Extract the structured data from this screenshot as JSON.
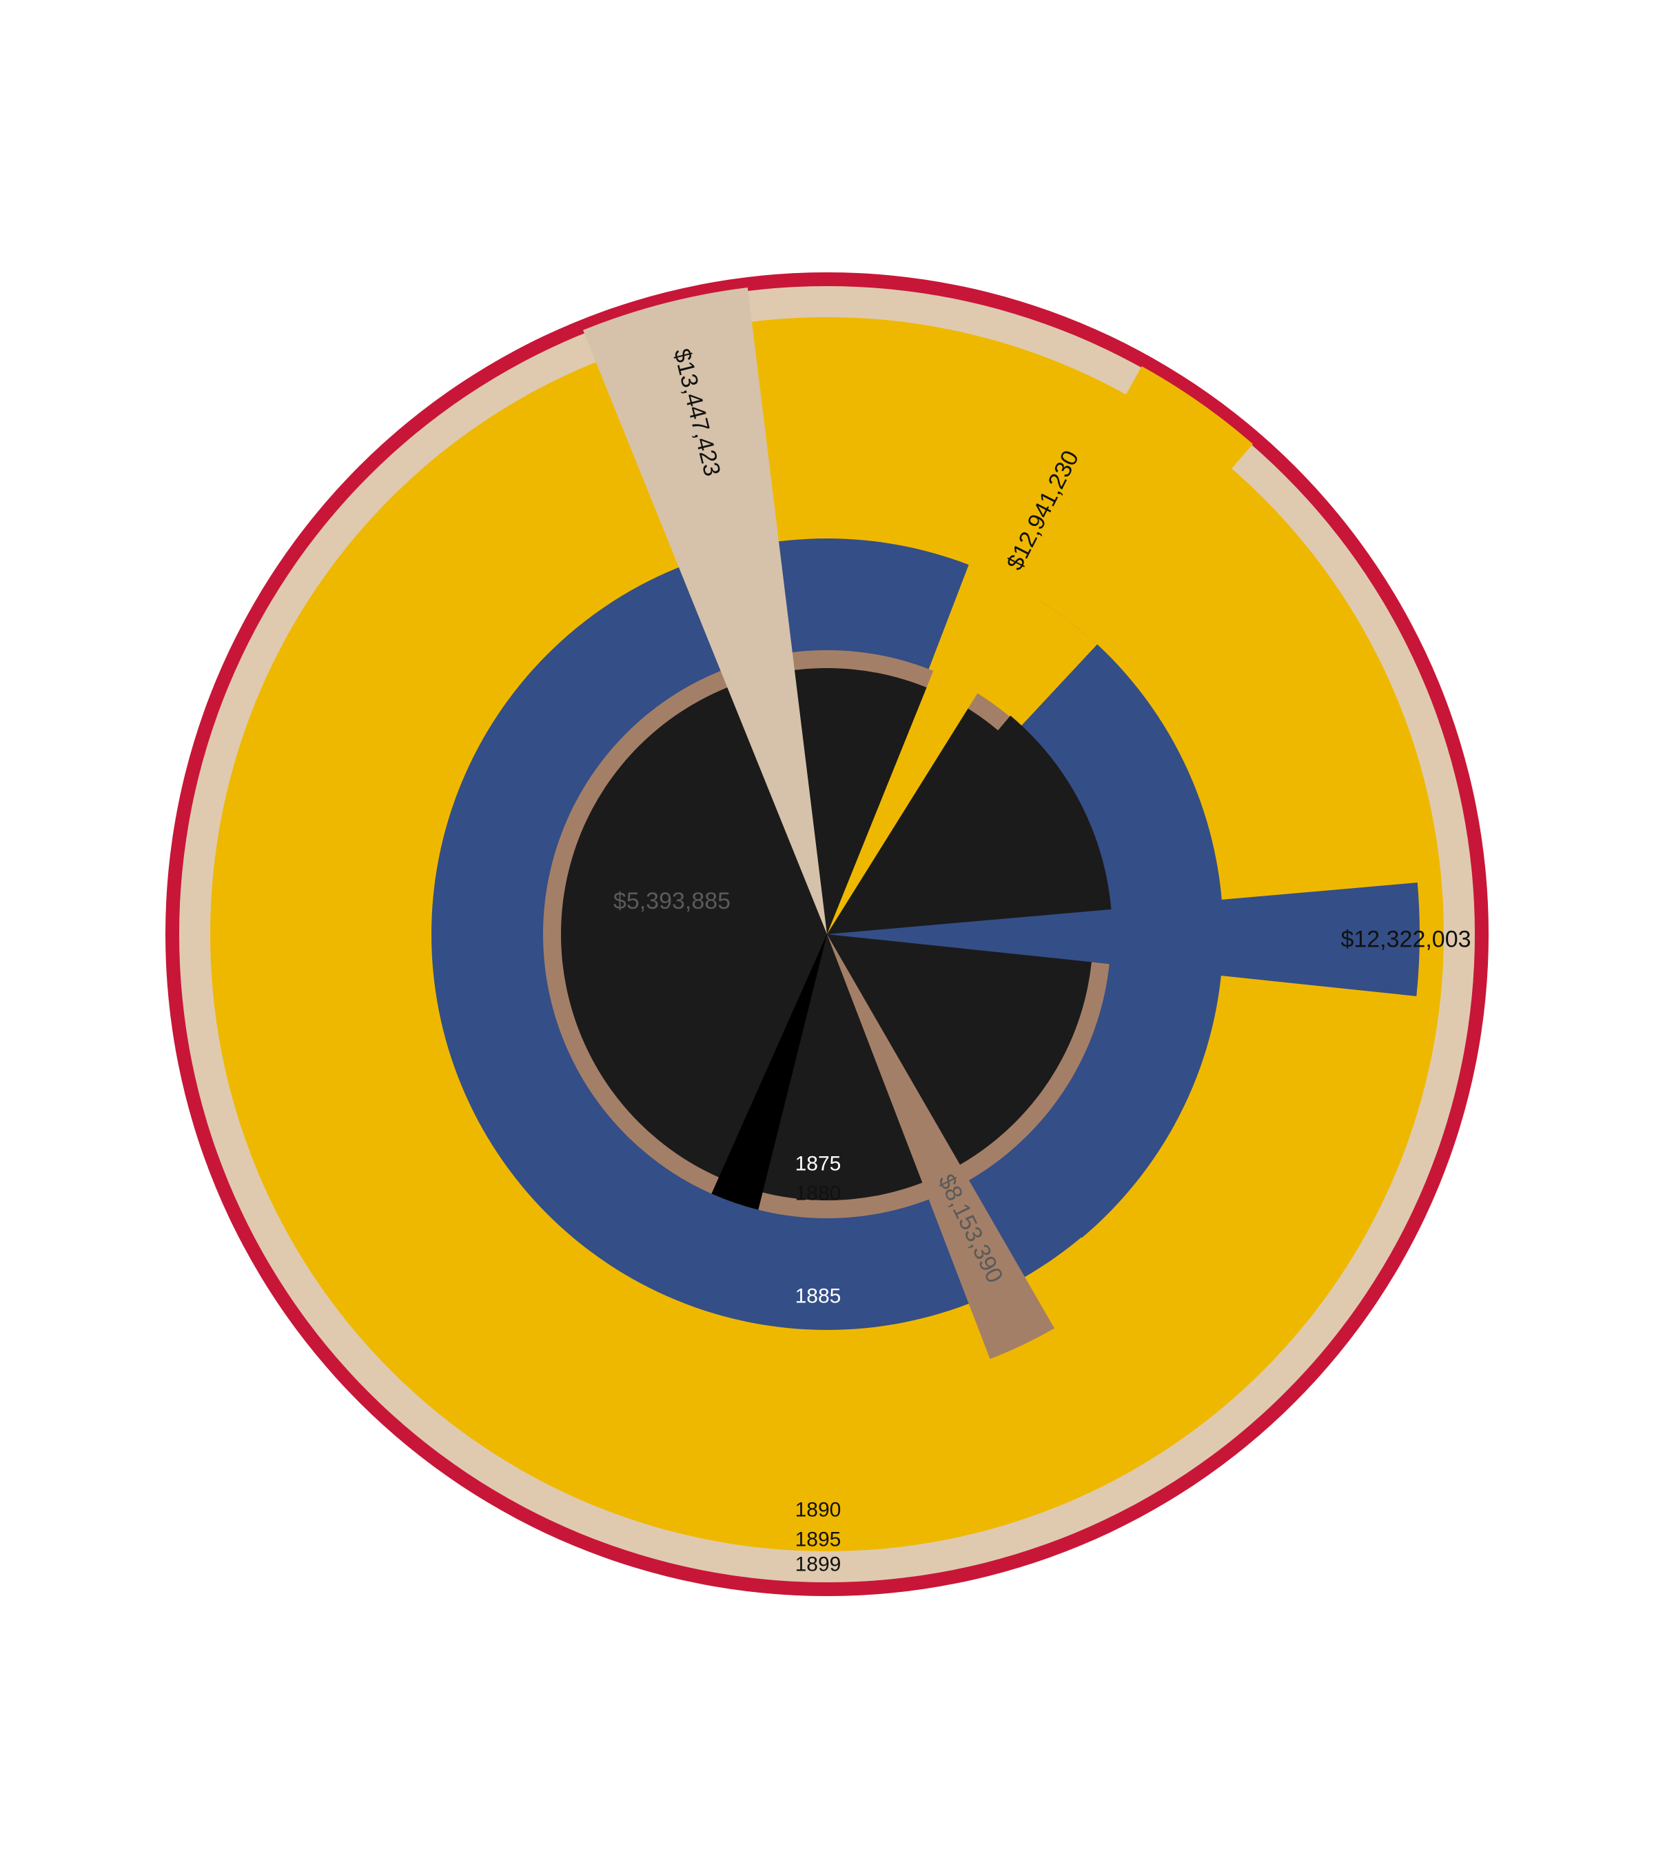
{
  "chart_data": {
    "type": "pie",
    "title": "",
    "colors": {
      "1875": "#1b1b1b",
      "1880": "#a47f67",
      "1885": "#344e87",
      "1890": "#efb800",
      "1895": "#dfcab0",
      "1899": "#c81638",
      "wedge_1880": "#000000",
      "wedge_1895": "#d6c2aa",
      "wedge_1885": "#344e87"
    },
    "rings": [
      {
        "year": "1875",
        "label": "1875",
        "label_color": "#ffffff"
      },
      {
        "year": "1880",
        "label": "1880",
        "label_color": "#111111"
      },
      {
        "year": "1885",
        "label": "1885",
        "label_color": "#ffffff"
      },
      {
        "year": "1890",
        "label": "1890",
        "label_color": "#111111"
      },
      {
        "year": "1895",
        "label": "1895",
        "label_color": "#111111"
      },
      {
        "year": "1899",
        "label": "1899",
        "label_color": "#111111"
      }
    ],
    "wedges": [
      {
        "year": "1875",
        "value": 5393885,
        "label": "$5,393,885",
        "label_color": "#5a5a5a"
      },
      {
        "year": "1880",
        "value": 8153390,
        "label": "$8,153,390",
        "label_color": "#5a5a5a"
      },
      {
        "year": "1885",
        "value": 12322003,
        "label": "$12,322,003",
        "label_color": "#111111"
      },
      {
        "year": "1890",
        "value": 12941230,
        "label": "$12,941,230",
        "label_color": "#111111"
      },
      {
        "year": "1895",
        "value": 13447423,
        "label": "$13,447,423",
        "label_color": "#111111"
      }
    ]
  }
}
